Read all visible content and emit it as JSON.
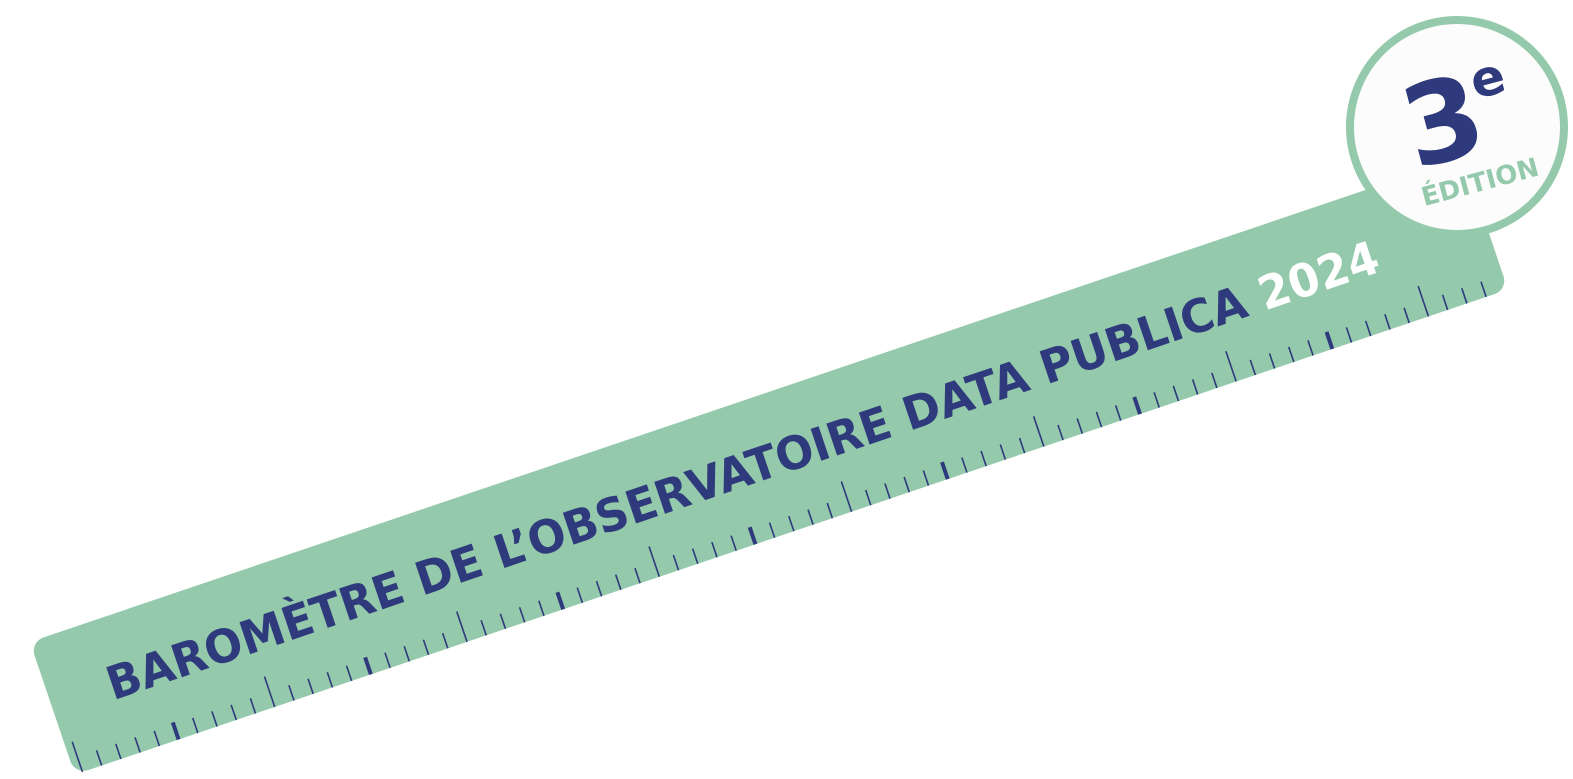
{
  "title": "BAROMÈTRE DE L’OBSERVATOIRE DATA PUBLICA",
  "year": "2024",
  "badge": {
    "number": "3",
    "suffix": "e",
    "label": "ÉDITION"
  }
}
